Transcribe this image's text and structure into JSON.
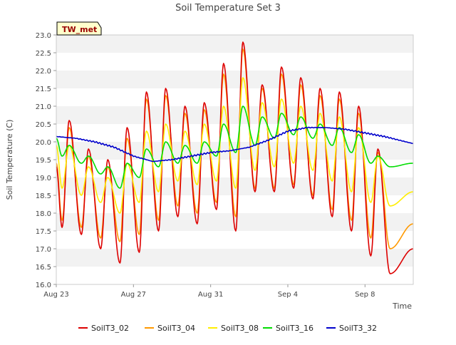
{
  "chart_data": {
    "type": "line",
    "title": "Soil Temperature Set 3",
    "xlabel": "Time",
    "ylabel": "Soil Temperature (C)",
    "station_badge": "TW_met",
    "x_range": [
      "2023-08-23",
      "2023-09-10T12:00"
    ],
    "x_ticks": [
      {
        "date": "2023-08-23",
        "label": "Aug 23"
      },
      {
        "date": "2023-08-27",
        "label": "Aug 27"
      },
      {
        "date": "2023-08-31",
        "label": "Aug 31"
      },
      {
        "date": "2023-09-04",
        "label": "Sep 4"
      },
      {
        "date": "2023-09-08",
        "label": "Sep 8"
      }
    ],
    "ylim": [
      16.0,
      23.0
    ],
    "y_ticks": [
      "16.0",
      "16.5",
      "17.0",
      "17.5",
      "18.0",
      "18.5",
      "19.0",
      "19.5",
      "20.0",
      "20.5",
      "21.0",
      "21.5",
      "22.0",
      "22.5",
      "23.0"
    ],
    "grid": "horizontal bands",
    "legend_position": "bottom",
    "series": [
      {
        "name": "SoilT3_02",
        "color": "#dd0000",
        "daily_min": [
          17.6,
          17.4,
          17.0,
          16.6,
          16.9,
          17.5,
          17.9,
          17.7,
          18.1,
          17.5,
          18.6,
          18.6,
          18.7,
          18.4,
          17.9,
          17.5,
          16.8,
          16.3
        ],
        "daily_max": [
          20.6,
          19.8,
          19.5,
          20.4,
          21.4,
          21.5,
          21.0,
          21.1,
          22.2,
          22.8,
          21.6,
          22.1,
          21.8,
          21.5,
          21.4,
          21.0,
          19.8
        ],
        "end": [
          2023,
          8,
          23,
          0,
          0,
          19.3
        ],
        "end_final": 17.0
      },
      {
        "name": "SoilT3_04",
        "color": "#ff9900",
        "daily_min": [
          17.8,
          17.6,
          17.3,
          17.2,
          17.4,
          17.8,
          18.2,
          18.0,
          18.3,
          17.9,
          18.7,
          18.7,
          18.8,
          18.5,
          18.1,
          17.8,
          17.3,
          17.0
        ],
        "daily_max": [
          20.4,
          19.6,
          19.3,
          20.1,
          21.2,
          21.3,
          20.8,
          20.9,
          21.9,
          22.6,
          21.5,
          21.9,
          21.6,
          21.3,
          21.2,
          20.8,
          19.7
        ],
        "end": [
          2023,
          8,
          23,
          0,
          0,
          19.4
        ],
        "end_final": 17.7
      },
      {
        "name": "SoilT3_08",
        "color": "#ffee00",
        "daily_min": [
          18.7,
          18.5,
          18.3,
          18.0,
          18.3,
          18.6,
          18.9,
          18.8,
          18.9,
          18.7,
          19.2,
          19.3,
          19.4,
          19.2,
          18.9,
          18.6,
          18.3,
          18.2
        ],
        "daily_max": [
          19.9,
          19.3,
          19.0,
          19.4,
          20.3,
          20.5,
          20.3,
          20.5,
          21.0,
          21.8,
          21.1,
          21.2,
          21.0,
          20.8,
          20.7,
          20.4,
          19.6
        ],
        "end": [
          2023,
          8,
          23,
          0,
          0,
          19.9
        ],
        "end_final": 18.6
      },
      {
        "name": "SoilT3_16",
        "color": "#00dd00",
        "daily_min": [
          19.6,
          19.4,
          19.1,
          18.7,
          19.0,
          19.3,
          19.4,
          19.4,
          19.6,
          19.7,
          19.9,
          20.1,
          20.2,
          20.1,
          19.9,
          19.7,
          19.4,
          19.3
        ],
        "daily_max": [
          19.9,
          19.6,
          19.3,
          19.4,
          19.8,
          20.0,
          19.9,
          20.0,
          20.5,
          21.0,
          20.7,
          20.8,
          20.7,
          20.5,
          20.4,
          20.2,
          19.6
        ],
        "end": [
          2023,
          8,
          23,
          0,
          0,
          20.1
        ],
        "end_final": 19.4
      },
      {
        "name": "SoilT3_32",
        "color": "#0000cc",
        "x": [
          "2023-08-23",
          "2023-08-24",
          "2023-08-25",
          "2023-08-26",
          "2023-08-27",
          "2023-08-28",
          "2023-08-29",
          "2023-08-30",
          "2023-08-31",
          "2023-09-01",
          "2023-09-02",
          "2023-09-03",
          "2023-09-04",
          "2023-09-05",
          "2023-09-06",
          "2023-09-07",
          "2023-09-08",
          "2023-09-09",
          "2023-09-10T12:00"
        ],
        "y": [
          20.15,
          20.1,
          20.0,
          19.85,
          19.6,
          19.45,
          19.5,
          19.6,
          19.7,
          19.75,
          19.85,
          20.05,
          20.3,
          20.4,
          20.4,
          20.35,
          20.25,
          20.15,
          19.95
        ]
      }
    ]
  }
}
